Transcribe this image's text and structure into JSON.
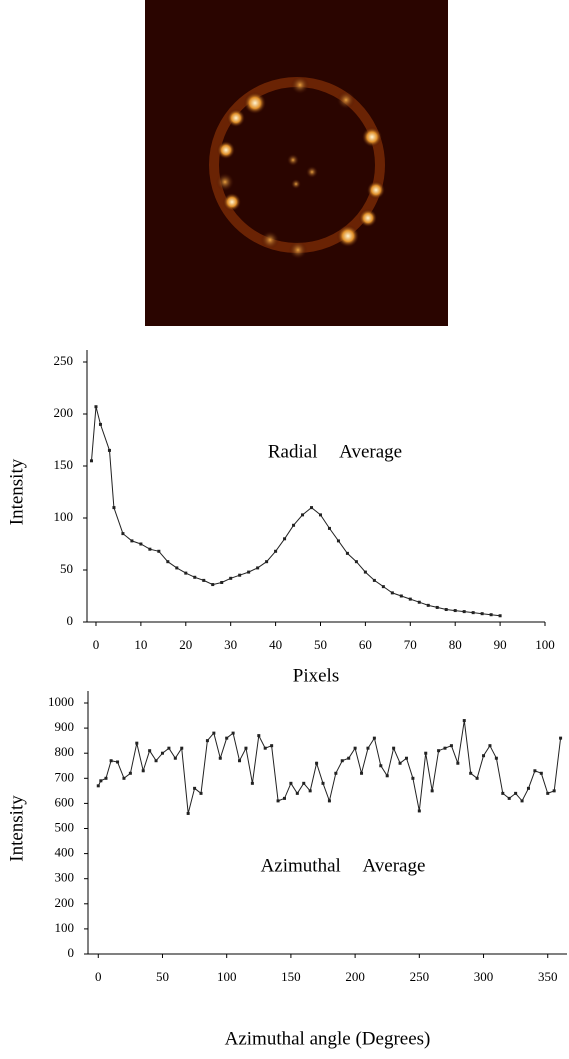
{
  "chart_data": [
    {
      "type": "line",
      "title": "Radial Average",
      "xlabel": "Pixels",
      "ylabel": "Intensity",
      "x": [
        -1,
        0,
        1,
        3,
        4,
        6,
        8,
        10,
        12,
        14,
        16,
        18,
        20,
        22,
        24,
        26,
        28,
        30,
        32,
        34,
        36,
        38,
        40,
        42,
        44,
        46,
        48,
        50,
        52,
        54,
        56,
        58,
        60,
        62,
        64,
        66,
        68,
        70,
        72,
        74,
        76,
        78,
        80,
        82,
        84,
        86,
        88,
        90
      ],
      "values": [
        155,
        207,
        190,
        165,
        110,
        85,
        78,
        75,
        70,
        68,
        58,
        52,
        47,
        43,
        40,
        36,
        38,
        42,
        45,
        48,
        52,
        58,
        68,
        80,
        93,
        103,
        110,
        103,
        90,
        78,
        66,
        58,
        48,
        40,
        34,
        28,
        25,
        22,
        19,
        16,
        14,
        12,
        11,
        10,
        9,
        8,
        7,
        6
      ],
      "color": "#222222",
      "xlim": [
        -2,
        100
      ],
      "ylim": [
        0,
        250
      ],
      "xticks": [
        0,
        10,
        20,
        30,
        40,
        50,
        60,
        70,
        80,
        90,
        100
      ],
      "yticks": [
        0,
        50,
        100,
        150,
        200,
        250
      ]
    },
    {
      "type": "line",
      "title": "Azimuthal Average",
      "xlabel": "Azimuthal angle (Degrees)",
      "ylabel": "Intensity",
      "x": [
        0,
        2,
        6,
        10,
        15,
        20,
        25,
        30,
        35,
        40,
        45,
        50,
        55,
        60,
        65,
        70,
        75,
        80,
        85,
        90,
        95,
        100,
        105,
        110,
        115,
        120,
        125,
        130,
        135,
        140,
        145,
        150,
        155,
        160,
        165,
        170,
        175,
        180,
        185,
        190,
        195,
        200,
        205,
        210,
        215,
        220,
        225,
        230,
        235,
        240,
        245,
        250,
        255,
        260,
        265,
        270,
        275,
        280,
        285,
        290,
        295,
        300,
        305,
        310,
        315,
        320,
        325,
        330,
        335,
        340,
        345,
        350,
        355,
        360
      ],
      "values": [
        670,
        690,
        700,
        770,
        765,
        700,
        720,
        840,
        730,
        810,
        770,
        800,
        820,
        780,
        820,
        560,
        660,
        640,
        850,
        880,
        780,
        860,
        880,
        770,
        820,
        680,
        870,
        820,
        830,
        610,
        620,
        680,
        640,
        680,
        650,
        760,
        680,
        610,
        720,
        770,
        780,
        820,
        720,
        820,
        860,
        750,
        710,
        820,
        760,
        780,
        700,
        570,
        800,
        650,
        810,
        820,
        830,
        760,
        930,
        720,
        700,
        790,
        830,
        780,
        640,
        620,
        640,
        610,
        660,
        730,
        720,
        640,
        650,
        860
      ],
      "color": "#222222",
      "xlim": [
        -8,
        365
      ],
      "ylim": [
        0,
        1000
      ],
      "xticks": [
        0,
        50,
        100,
        150,
        200,
        250,
        300,
        350
      ],
      "yticks": [
        0,
        100,
        200,
        300,
        400,
        500,
        600,
        700,
        800,
        900,
        1000
      ]
    }
  ]
}
